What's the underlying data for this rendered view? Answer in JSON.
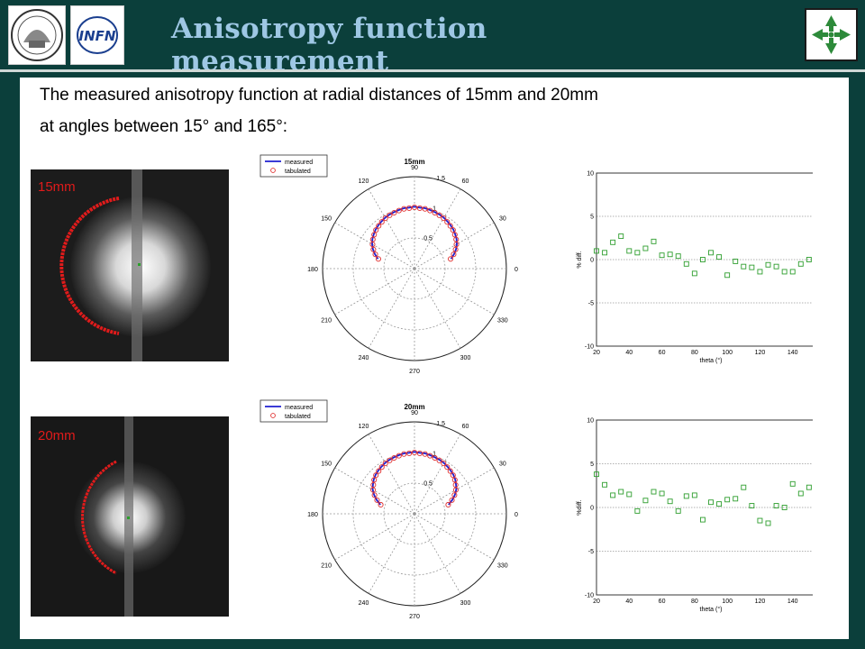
{
  "header": {
    "title": "Anisotropy function measurement",
    "logos": [
      {
        "name": "university-seal-logo"
      },
      {
        "name": "infn-logo",
        "text": "INFN"
      },
      {
        "name": "green-arrows-logo"
      }
    ]
  },
  "caption": {
    "line1": "The measured anisotropy function at radial distances of 15mm and 20mm",
    "line2": "at angles between 15° and 165°:"
  },
  "colors": {
    "background": "#0b3f3b",
    "title": "#9ec7e4",
    "measured": "#1f1fd0",
    "tabulated": "#e03030",
    "diff": "#2e9e2e",
    "image_label": "#e01b1b"
  },
  "rows": [
    {
      "image_label": "15mm",
      "polar_title": "15mm",
      "diff_values": [
        1,
        0.8,
        2,
        2.7,
        1,
        0.8,
        1.3,
        2.1,
        0.5,
        0.6,
        0.4,
        -0.5,
        -1.6,
        0,
        0.8,
        0.3,
        -1.8,
        -0.2,
        -0.8,
        -0.9,
        -1.4,
        -0.6,
        -0.8,
        -1.4,
        -1.4,
        -0.5,
        0,
        2
      ]
    },
    {
      "image_label": "20mm",
      "polar_title": "20mm",
      "diff_values": [
        3.8,
        2.6,
        1.4,
        1.8,
        1.5,
        -0.4,
        0.8,
        1.8,
        1.6,
        0.7,
        -0.4,
        1.3,
        1.4,
        -1.4,
        0.6,
        0.4,
        0.9,
        1,
        2.3,
        0.2,
        -1.5,
        -1.8,
        0.2,
        0,
        2.7,
        1.6,
        2.3,
        2
      ]
    }
  ],
  "chart_data": [
    {
      "type": "scatter",
      "title": "15mm",
      "polar": true,
      "series": [
        {
          "name": "measured",
          "theta_deg": [
            15,
            165
          ],
          "r": [
            0.75,
            0.75
          ]
        },
        {
          "name": "tabulated",
          "theta_deg": [
            15,
            20,
            25,
            30,
            35,
            40,
            45,
            50,
            55,
            60,
            65,
            70,
            75,
            80,
            85,
            90,
            95,
            100,
            105,
            110,
            115,
            120,
            125,
            130,
            135,
            140,
            145,
            150,
            155,
            160,
            165
          ],
          "r": [
            0.61,
            0.68,
            0.74,
            0.79,
            0.83,
            0.86,
            0.89,
            0.91,
            0.93,
            0.95,
            0.96,
            0.97,
            0.98,
            0.99,
            0.99,
            1.0,
            0.99,
            0.99,
            0.98,
            0.97,
            0.96,
            0.95,
            0.93,
            0.91,
            0.89,
            0.86,
            0.83,
            0.79,
            0.74,
            0.68,
            0.61
          ]
        }
      ],
      "r_ticks": [
        "0.5",
        "1",
        "1.5"
      ],
      "angle_ticks": [
        "0",
        "30",
        "60",
        "90",
        "120",
        "150",
        "180",
        "210",
        "240",
        "270",
        "300",
        "330"
      ],
      "legend": "top-left"
    },
    {
      "type": "scatter",
      "title": "",
      "xlabel": "theta (°)",
      "ylabel": "% diff.",
      "xlim": [
        20,
        160
      ],
      "ylim": [
        -10,
        10
      ],
      "x_ticks": [
        "20",
        "40",
        "60",
        "80",
        "100",
        "120",
        "140",
        "160"
      ],
      "y_ticks": [
        "-10",
        "-5",
        "0",
        "5",
        "10"
      ],
      "grid": true,
      "series": [
        {
          "name": "",
          "x": [
            20,
            25,
            30,
            35,
            40,
            45,
            50,
            55,
            60,
            65,
            70,
            75,
            80,
            85,
            90,
            95,
            100,
            105,
            110,
            115,
            120,
            125,
            130,
            135,
            140,
            145,
            150,
            155
          ],
          "y": [
            1,
            0.8,
            2,
            2.7,
            1,
            0.8,
            1.3,
            2.1,
            0.5,
            0.6,
            0.4,
            -0.5,
            -1.6,
            0,
            0.8,
            0.3,
            -1.8,
            -0.2,
            -0.8,
            -0.9,
            -1.4,
            -0.6,
            -0.8,
            -1.4,
            -1.4,
            -0.5,
            0,
            2
          ]
        }
      ]
    },
    {
      "type": "scatter",
      "title": "20mm",
      "polar": true,
      "series": [
        {
          "name": "measured",
          "theta_deg": [
            15,
            165
          ],
          "r": [
            0.72,
            0.72
          ]
        },
        {
          "name": "tabulated",
          "theta_deg": [
            15,
            20,
            25,
            30,
            35,
            40,
            45,
            50,
            55,
            60,
            65,
            70,
            75,
            80,
            85,
            90,
            95,
            100,
            105,
            110,
            115,
            120,
            125,
            130,
            135,
            140,
            145,
            150,
            155,
            160,
            165
          ],
          "r": [
            0.57,
            0.65,
            0.72,
            0.78,
            0.82,
            0.86,
            0.89,
            0.91,
            0.93,
            0.95,
            0.96,
            0.97,
            0.98,
            0.99,
            0.99,
            1.0,
            0.99,
            0.99,
            0.98,
            0.97,
            0.96,
            0.95,
            0.93,
            0.91,
            0.89,
            0.86,
            0.82,
            0.78,
            0.72,
            0.65,
            0.57
          ]
        }
      ],
      "r_ticks": [
        "0.5",
        "1",
        "1.5"
      ],
      "angle_ticks": [
        "0",
        "30",
        "60",
        "90",
        "120",
        "150",
        "180",
        "210",
        "240",
        "270",
        "300",
        "330"
      ],
      "legend": "top-left"
    },
    {
      "type": "scatter",
      "title": "",
      "xlabel": "theta (°)",
      "ylabel": "%diff.",
      "xlim": [
        20,
        160
      ],
      "ylim": [
        -10,
        10
      ],
      "x_ticks": [
        "20",
        "40",
        "60",
        "80",
        "100",
        "120",
        "140",
        "160"
      ],
      "y_ticks": [
        "-10",
        "-5",
        "0",
        "5",
        "10"
      ],
      "grid": true,
      "series": [
        {
          "name": "",
          "x": [
            20,
            25,
            30,
            35,
            40,
            45,
            50,
            55,
            60,
            65,
            70,
            75,
            80,
            85,
            90,
            95,
            100,
            105,
            110,
            115,
            120,
            125,
            130,
            135,
            140,
            145,
            150,
            155
          ],
          "y": [
            3.8,
            2.6,
            1.4,
            1.8,
            1.5,
            -0.4,
            0.8,
            1.8,
            1.6,
            0.7,
            -0.4,
            1.3,
            1.4,
            -1.4,
            0.6,
            0.4,
            0.9,
            1,
            2.3,
            0.2,
            -1.5,
            -1.8,
            0.2,
            0,
            2.7,
            1.6,
            2.3,
            2
          ]
        }
      ]
    }
  ]
}
